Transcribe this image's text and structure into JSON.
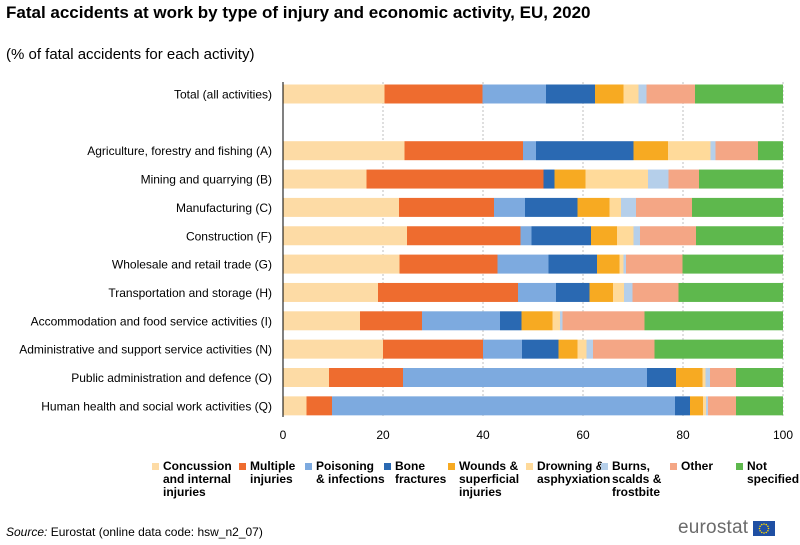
{
  "header": {
    "title": "Fatal accidents at work by type of injury and economic activity, EU, 2020",
    "subtitle": "(% of fatal accidents for each activity)"
  },
  "footer": {
    "source_label": "Source:",
    "source_text": " Eurostat (online data code: hsw_n2_07)",
    "logo_text": "eurostat"
  },
  "colors": [
    "#FDDBA5",
    "#EE6C2F",
    "#7DAADF",
    "#2A69B2",
    "#F7AA22",
    "#FFDA9A",
    "#B5CFEA",
    "#F4A685",
    "#5EB84D"
  ],
  "chart_data": {
    "type": "bar",
    "orientation": "horizontal",
    "stacked": true,
    "xlim": [
      0,
      100
    ],
    "xticks": [
      0,
      20,
      40,
      60,
      80,
      100
    ],
    "grid": "vertical dashed",
    "legend_position": "bottom",
    "categories": [
      "Total (all activities)",
      "",
      "Agriculture, forestry and fishing (A)",
      "Mining and quarrying (B)",
      "Manufacturing (C)",
      "Construction (F)",
      "Wholesale and retail trade (G)",
      "Transportation and storage (H)",
      "Accommodation and food service activities (I)",
      "Administrative and support service activities (N)",
      "Public administration and defence (O)",
      "Human health and social work activities (Q)"
    ],
    "series": [
      {
        "name": "Concussion and internal injuries",
        "legend_label": "Concussion\nand internal\ninjuries",
        "values": [
          20.3,
          null,
          24.3,
          16.7,
          23.2,
          24.8,
          23.3,
          19.0,
          15.4,
          20.0,
          9.2,
          4.7
        ]
      },
      {
        "name": "Multiple injuries",
        "legend_label": "Multiple\ninjuries",
        "values": [
          19.6,
          null,
          23.7,
          35.4,
          19.0,
          22.7,
          19.6,
          28.0,
          12.4,
          20.0,
          14.8,
          5.1
        ]
      },
      {
        "name": "Poisoning & infections",
        "legend_label": "Poisoning\n& infections",
        "values": [
          12.7,
          null,
          2.6,
          0.0,
          6.2,
          2.2,
          10.2,
          7.6,
          15.6,
          7.8,
          48.8,
          68.6
        ]
      },
      {
        "name": "Bone fractures",
        "legend_label": "Bone\nfractures",
        "values": [
          9.8,
          null,
          19.5,
          2.2,
          10.5,
          11.9,
          9.7,
          6.7,
          4.3,
          7.3,
          5.8,
          3.0
        ]
      },
      {
        "name": "Wounds & superficial injuries",
        "legend_label": "Wounds &\nsuperficial\ninjuries",
        "values": [
          5.7,
          null,
          6.9,
          6.2,
          6.4,
          5.2,
          4.5,
          4.7,
          6.2,
          3.8,
          5.3,
          2.6
        ]
      },
      {
        "name": "Drowning & asphyxiation",
        "legend_label": "Drowning &\nasphyxiation",
        "values": [
          3.0,
          null,
          8.5,
          12.5,
          2.3,
          3.3,
          0.8,
          2.2,
          1.5,
          1.8,
          0.6,
          0.6
        ]
      },
      {
        "name": "Burns, scalds & frostbite",
        "legend_label": "Burns,\nscalds &\nfrostbite",
        "values": [
          1.6,
          null,
          1.0,
          4.1,
          3.0,
          1.3,
          0.5,
          1.7,
          0.5,
          1.3,
          0.9,
          0.4
        ]
      },
      {
        "name": "Other",
        "legend_label": "Other",
        "values": [
          9.7,
          null,
          8.5,
          6.1,
          11.2,
          11.2,
          11.3,
          9.2,
          16.4,
          12.3,
          5.2,
          5.6
        ]
      },
      {
        "name": "Not specified",
        "legend_label": "Not\nspecified",
        "values": [
          17.6,
          null,
          5.0,
          16.8,
          18.2,
          17.4,
          20.1,
          20.9,
          27.7,
          25.7,
          9.4,
          9.4
        ]
      }
    ]
  }
}
